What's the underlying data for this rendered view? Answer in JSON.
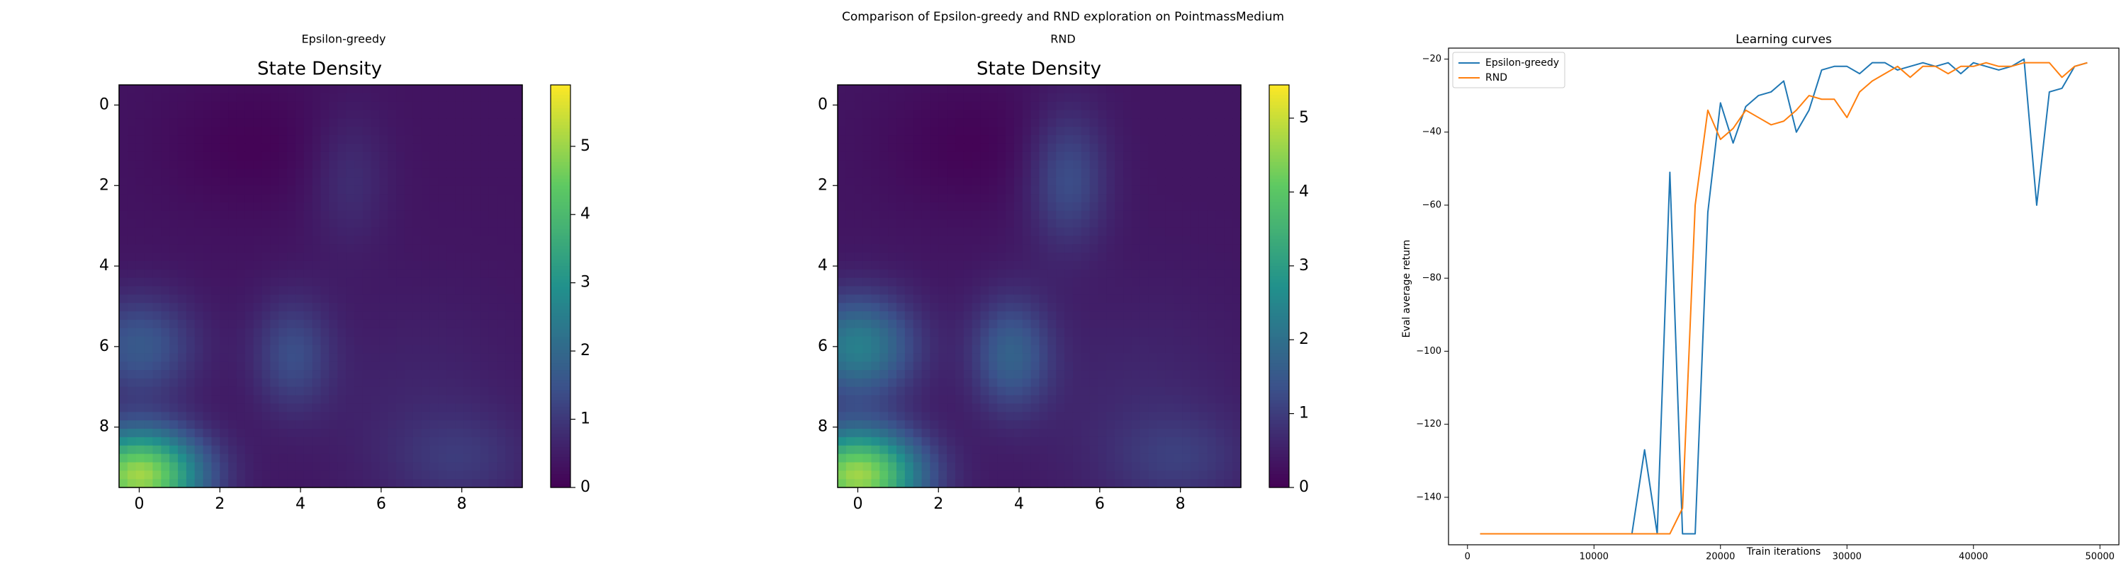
{
  "figure": {
    "suptitle": "Comparison of Epsilon-greedy and RND exploration on PointmassMedium"
  },
  "chart_data": [
    {
      "type": "heatmap",
      "panel_title": "Epsilon-greedy",
      "title": "State Density",
      "x_ticks": [
        "0",
        "2",
        "4",
        "6",
        "8"
      ],
      "y_ticks": [
        "0",
        "2",
        "4",
        "6",
        "8"
      ],
      "colorbar_ticks": [
        "0",
        "1",
        "2",
        "3",
        "4",
        "5"
      ],
      "value_range": [
        0,
        5.9
      ],
      "colormap": [
        "#440154",
        "#3b528b",
        "#21918c",
        "#5ec962",
        "#fde725"
      ],
      "blobs": [
        {
          "x": 0.0,
          "y": 9.2,
          "sx": 1.1,
          "sy": 0.8,
          "value": 4.7
        },
        {
          "x": 0.0,
          "y": 6.0,
          "sx": 1.0,
          "sy": 0.9,
          "value": 1.3
        },
        {
          "x": 3.8,
          "y": 6.2,
          "sx": 0.7,
          "sy": 1.0,
          "value": 1.0
        },
        {
          "x": 8.0,
          "y": 8.8,
          "sx": 1.2,
          "sy": 0.8,
          "value": 0.5
        },
        {
          "x": 5.2,
          "y": 1.8,
          "sx": 0.7,
          "sy": 1.2,
          "value": 0.5
        },
        {
          "x": 7.0,
          "y": 7.5,
          "sx": 2.0,
          "sy": 2.0,
          "value": 0.3
        }
      ]
    },
    {
      "type": "heatmap",
      "panel_title": "RND",
      "title": "State Density",
      "x_ticks": [
        "0",
        "2",
        "4",
        "6",
        "8"
      ],
      "y_ticks": [
        "0",
        "2",
        "4",
        "6",
        "8"
      ],
      "colorbar_ticks": [
        "0",
        "1",
        "2",
        "3",
        "4",
        "5"
      ],
      "value_range": [
        0,
        5.45
      ],
      "colormap": [
        "#440154",
        "#3b528b",
        "#21918c",
        "#5ec962",
        "#fde725"
      ],
      "blobs": [
        {
          "x": 0.0,
          "y": 9.2,
          "sx": 1.1,
          "sy": 0.8,
          "value": 4.3
        },
        {
          "x": 0.0,
          "y": 6.0,
          "sx": 1.0,
          "sy": 0.9,
          "value": 2.0
        },
        {
          "x": 3.8,
          "y": 6.2,
          "sx": 0.7,
          "sy": 1.0,
          "value": 1.3
        },
        {
          "x": 8.0,
          "y": 8.8,
          "sx": 1.2,
          "sy": 0.8,
          "value": 0.5
        },
        {
          "x": 5.2,
          "y": 1.8,
          "sx": 0.7,
          "sy": 1.2,
          "value": 1.0
        },
        {
          "x": 7.0,
          "y": 7.5,
          "sx": 2.0,
          "sy": 2.0,
          "value": 0.3
        }
      ]
    },
    {
      "type": "line",
      "title": "Learning curves",
      "xlabel": "Train iterations",
      "ylabel": "Eval average return",
      "xlim": [
        -1500,
        51500
      ],
      "ylim": [
        -153,
        -17
      ],
      "x_ticks": [
        0,
        10000,
        20000,
        30000,
        40000,
        50000
      ],
      "y_ticks": [
        -140,
        -120,
        -100,
        -80,
        -60,
        -40,
        -20
      ],
      "legend_position": "upper-left",
      "series": [
        {
          "name": "Epsilon-greedy",
          "color": "#1f77b4",
          "x": [
            1000,
            2000,
            3000,
            4000,
            5000,
            6000,
            7000,
            8000,
            9000,
            10000,
            11000,
            12000,
            13000,
            14000,
            15000,
            16000,
            17000,
            18000,
            19000,
            20000,
            21000,
            22000,
            23000,
            24000,
            25000,
            26000,
            27000,
            28000,
            29000,
            30000,
            31000,
            32000,
            33000,
            34000,
            35000,
            36000,
            37000,
            38000,
            39000,
            40000,
            41000,
            42000,
            43000,
            44000,
            45000,
            46000,
            47000,
            48000,
            49000
          ],
          "y": [
            -150,
            -150,
            -150,
            -150,
            -150,
            -150,
            -150,
            -150,
            -150,
            -150,
            -150,
            -150,
            -150,
            -127,
            -150,
            -51,
            -150,
            -150,
            -62,
            -32,
            -43,
            -33,
            -30,
            -29,
            -26,
            -40,
            -34,
            -23,
            -22,
            -22,
            -24,
            -21,
            -21,
            -23,
            -22,
            -21,
            -22,
            -21,
            -24,
            -21,
            -22,
            -23,
            -22,
            -20,
            -60,
            -29,
            -28,
            -22,
            -21
          ]
        },
        {
          "name": "RND",
          "color": "#ff7f0e",
          "x": [
            1000,
            2000,
            3000,
            4000,
            5000,
            6000,
            7000,
            8000,
            9000,
            10000,
            11000,
            12000,
            13000,
            14000,
            15000,
            16000,
            17000,
            18000,
            19000,
            20000,
            21000,
            22000,
            23000,
            24000,
            25000,
            26000,
            27000,
            28000,
            29000,
            30000,
            31000,
            32000,
            33000,
            34000,
            35000,
            36000,
            37000,
            38000,
            39000,
            40000,
            41000,
            42000,
            43000,
            44000,
            45000,
            46000,
            47000,
            48000,
            49000
          ],
          "y": [
            -150,
            -150,
            -150,
            -150,
            -150,
            -150,
            -150,
            -150,
            -150,
            -150,
            -150,
            -150,
            -150,
            -150,
            -150,
            -150,
            -143,
            -60,
            -34,
            -42,
            -39,
            -34,
            -36,
            -38,
            -37,
            -34,
            -30,
            -31,
            -31,
            -36,
            -29,
            -26,
            -24,
            -22,
            -25,
            -22,
            -22,
            -24,
            -22,
            -22,
            -21,
            -22,
            -22,
            -21,
            -21,
            -21,
            -25,
            -22,
            -21
          ]
        }
      ]
    }
  ]
}
